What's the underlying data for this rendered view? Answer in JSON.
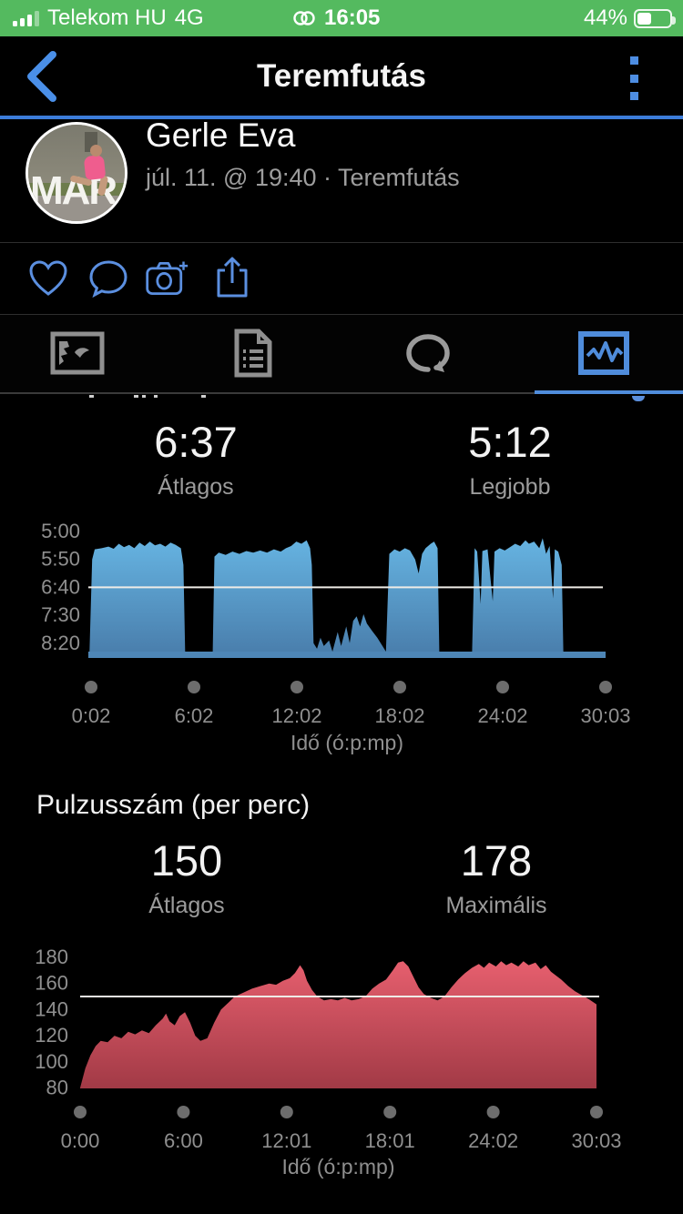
{
  "status_bar": {
    "carrier": "Telekom HU",
    "network": "4G",
    "time": "16:05",
    "battery_text": "44%",
    "battery_level": 44
  },
  "nav": {
    "title": "Teremfutás"
  },
  "user": {
    "name": "Gerle Eva",
    "meta": "júl. 11. @ 19:40 · Teremfutás",
    "avatar_letters": "MAR"
  },
  "actions": [
    {
      "name": "like"
    },
    {
      "name": "comment"
    },
    {
      "name": "add-photo"
    },
    {
      "name": "share"
    }
  ],
  "tabs": [
    {
      "name": "photos",
      "active": false
    },
    {
      "name": "notes",
      "active": false
    },
    {
      "name": "laps",
      "active": false
    },
    {
      "name": "charts",
      "active": true
    }
  ],
  "pace_section": {
    "avg_value": "6:37",
    "avg_label": "Átlagos",
    "best_value": "5:12",
    "best_label": "Legjobb"
  },
  "hr_section": {
    "title": "Pulzusszám (per perc)",
    "avg_value": "150",
    "avg_label": "Átlagos",
    "max_value": "178",
    "max_label": "Maximális"
  },
  "chart_data": [
    {
      "type": "area",
      "name": "pace-chart",
      "xlabel": "Idő (ó:p:mp)",
      "yticks": [
        "5:00",
        "5:50",
        "6:40",
        "7:30",
        "8:20"
      ],
      "xticks": [
        "0:02",
        "6:02",
        "12:02",
        "18:02",
        "24:02",
        "30:03"
      ],
      "x_range": [
        0.03,
        30.05
      ],
      "y_axis_note": "pace min:sec per km, 5:00 top to 8:20 bottom, inverted axis",
      "avg_line_value": 400,
      "colors": {
        "top": "#66b4e2",
        "bottom": "#4a7fad",
        "strip": "#4e86b6",
        "avg_line": "#efece7"
      },
      "series": [
        [
          0.1,
          515
        ],
        [
          0.25,
          350
        ],
        [
          0.4,
          332
        ],
        [
          0.8,
          330
        ],
        [
          1.2,
          327
        ],
        [
          1.5,
          331
        ],
        [
          1.8,
          322
        ],
        [
          2.1,
          328
        ],
        [
          2.4,
          324
        ],
        [
          2.7,
          330
        ],
        [
          3.0,
          320
        ],
        [
          3.3,
          326
        ],
        [
          3.6,
          318
        ],
        [
          3.9,
          325
        ],
        [
          4.2,
          322
        ],
        [
          4.5,
          327
        ],
        [
          4.8,
          320
        ],
        [
          5.1,
          324
        ],
        [
          5.4,
          330
        ],
        [
          5.55,
          360
        ],
        [
          5.65,
          515
        ],
        [
          7.25,
          515
        ],
        [
          7.35,
          345
        ],
        [
          7.6,
          338
        ],
        [
          8.0,
          342
        ],
        [
          8.4,
          336
        ],
        [
          8.8,
          340
        ],
        [
          9.2,
          335
        ],
        [
          9.6,
          338
        ],
        [
          10.0,
          334
        ],
        [
          10.4,
          338
        ],
        [
          10.8,
          332
        ],
        [
          11.2,
          336
        ],
        [
          11.5,
          330
        ],
        [
          11.8,
          326
        ],
        [
          12.1,
          318
        ],
        [
          12.4,
          322
        ],
        [
          12.7,
          316
        ],
        [
          12.9,
          330
        ],
        [
          13.0,
          360
        ],
        [
          13.1,
          500
        ],
        [
          13.3,
          510
        ],
        [
          13.5,
          490
        ],
        [
          13.7,
          505
        ],
        [
          14.0,
          495
        ],
        [
          14.2,
          515
        ],
        [
          14.5,
          480
        ],
        [
          14.7,
          505
        ],
        [
          15.0,
          470
        ],
        [
          15.2,
          500
        ],
        [
          15.4,
          460
        ],
        [
          15.6,
          452
        ],
        [
          15.8,
          470
        ],
        [
          16.0,
          448
        ],
        [
          16.2,
          465
        ],
        [
          16.5,
          478
        ],
        [
          16.8,
          490
        ],
        [
          17.1,
          505
        ],
        [
          17.3,
          515
        ],
        [
          17.5,
          340
        ],
        [
          17.8,
          332
        ],
        [
          18.1,
          336
        ],
        [
          18.4,
          330
        ],
        [
          18.7,
          334
        ],
        [
          19.0,
          350
        ],
        [
          19.2,
          375
        ],
        [
          19.4,
          340
        ],
        [
          19.6,
          330
        ],
        [
          19.9,
          322
        ],
        [
          20.1,
          318
        ],
        [
          20.3,
          330
        ],
        [
          20.4,
          515
        ],
        [
          22.3,
          515
        ],
        [
          22.45,
          330
        ],
        [
          22.6,
          336
        ],
        [
          22.8,
          430
        ],
        [
          22.9,
          335
        ],
        [
          23.2,
          332
        ],
        [
          23.5,
          425
        ],
        [
          23.6,
          336
        ],
        [
          23.9,
          330
        ],
        [
          24.2,
          334
        ],
        [
          24.5,
          328
        ],
        [
          24.8,
          322
        ],
        [
          25.1,
          326
        ],
        [
          25.4,
          316
        ],
        [
          25.6,
          322
        ],
        [
          25.9,
          318
        ],
        [
          26.2,
          330
        ],
        [
          26.4,
          312
        ],
        [
          26.6,
          340
        ],
        [
          26.8,
          326
        ],
        [
          27.0,
          420
        ],
        [
          27.1,
          332
        ],
        [
          27.3,
          336
        ],
        [
          27.5,
          360
        ],
        [
          27.6,
          515
        ],
        [
          30.03,
          515
        ]
      ]
    },
    {
      "type": "area",
      "name": "heart-rate-chart",
      "xlabel": "Idő (ó:p:mp)",
      "yticks": [
        "180",
        "160",
        "140",
        "120",
        "100",
        "80"
      ],
      "xticks": [
        "0:00",
        "6:00",
        "12:01",
        "18:01",
        "24:02",
        "30:03"
      ],
      "x_range": [
        0,
        30.05
      ],
      "ylim": [
        80,
        180
      ],
      "avg_line_value": 150,
      "colors": {
        "top": "#e65f6e",
        "bottom": "#a23a46",
        "strip": null,
        "avg_line": "#efece7"
      },
      "series": [
        [
          0.0,
          80
        ],
        [
          0.3,
          95
        ],
        [
          0.6,
          105
        ],
        [
          0.9,
          112
        ],
        [
          1.2,
          116
        ],
        [
          1.6,
          115
        ],
        [
          2.0,
          120
        ],
        [
          2.4,
          118
        ],
        [
          2.8,
          123
        ],
        [
          3.2,
          121
        ],
        [
          3.6,
          124
        ],
        [
          4.0,
          122
        ],
        [
          4.4,
          128
        ],
        [
          4.8,
          133
        ],
        [
          5.0,
          137
        ],
        [
          5.2,
          131
        ],
        [
          5.5,
          128
        ],
        [
          5.8,
          135
        ],
        [
          6.1,
          138
        ],
        [
          6.4,
          130
        ],
        [
          6.7,
          120
        ],
        [
          7.0,
          116
        ],
        [
          7.4,
          118
        ],
        [
          7.8,
          130
        ],
        [
          8.2,
          140
        ],
        [
          8.6,
          145
        ],
        [
          9.0,
          150
        ],
        [
          9.5,
          153
        ],
        [
          10.0,
          156
        ],
        [
          10.5,
          158
        ],
        [
          11.0,
          160
        ],
        [
          11.4,
          159
        ],
        [
          11.8,
          162
        ],
        [
          12.2,
          164
        ],
        [
          12.5,
          168
        ],
        [
          12.8,
          174
        ],
        [
          13.0,
          170
        ],
        [
          13.2,
          162
        ],
        [
          13.5,
          155
        ],
        [
          13.8,
          150
        ],
        [
          14.2,
          147
        ],
        [
          14.6,
          148
        ],
        [
          15.0,
          147
        ],
        [
          15.4,
          149
        ],
        [
          15.8,
          147
        ],
        [
          16.2,
          148
        ],
        [
          16.6,
          150
        ],
        [
          17.0,
          156
        ],
        [
          17.4,
          160
        ],
        [
          17.8,
          163
        ],
        [
          18.2,
          170
        ],
        [
          18.5,
          176
        ],
        [
          18.8,
          177
        ],
        [
          19.1,
          173
        ],
        [
          19.4,
          165
        ],
        [
          19.7,
          157
        ],
        [
          20.0,
          152
        ],
        [
          20.4,
          149
        ],
        [
          20.8,
          147
        ],
        [
          21.2,
          150
        ],
        [
          21.6,
          157
        ],
        [
          22.0,
          163
        ],
        [
          22.4,
          168
        ],
        [
          22.8,
          172
        ],
        [
          23.2,
          175
        ],
        [
          23.5,
          172
        ],
        [
          23.8,
          176
        ],
        [
          24.2,
          173
        ],
        [
          24.5,
          177
        ],
        [
          24.8,
          174
        ],
        [
          25.1,
          176
        ],
        [
          25.5,
          173
        ],
        [
          25.8,
          177
        ],
        [
          26.1,
          174
        ],
        [
          26.5,
          176
        ],
        [
          26.8,
          171
        ],
        [
          27.1,
          174
        ],
        [
          27.4,
          169
        ],
        [
          27.7,
          166
        ],
        [
          28.0,
          163
        ],
        [
          28.4,
          158
        ],
        [
          28.8,
          154
        ],
        [
          29.2,
          151
        ],
        [
          29.6,
          148
        ],
        [
          30.05,
          144
        ]
      ]
    }
  ]
}
